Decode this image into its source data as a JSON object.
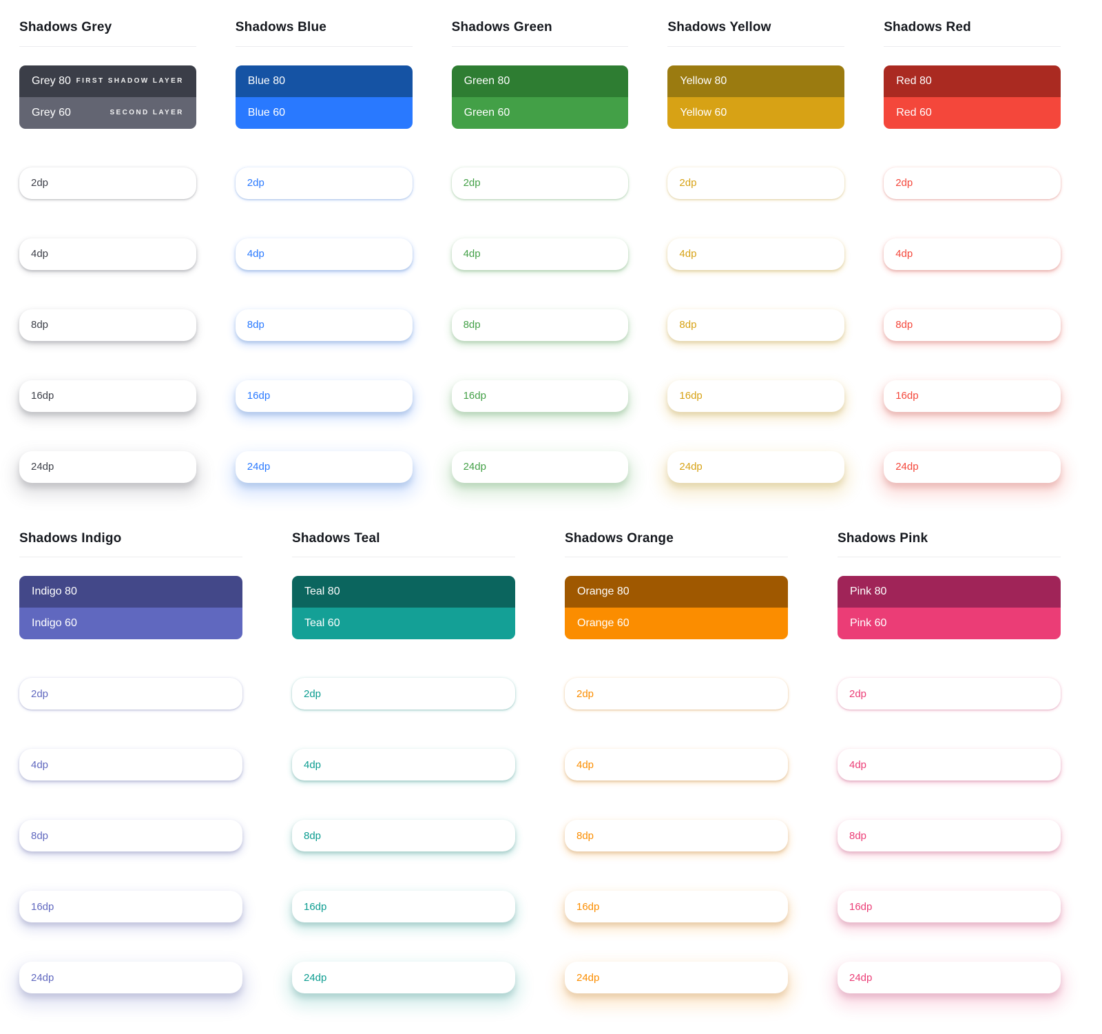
{
  "page": {
    "background": "#ffffff"
  },
  "dp_levels": [
    "2dp",
    "4dp",
    "8dp",
    "16dp",
    "24dp"
  ],
  "sections": [
    {
      "columns": [
        {
          "name": "grey",
          "title": "Shadows Grey",
          "label_color": "#3c3f48",
          "swatches": [
            {
              "label": "Grey 80",
              "note": "FIRST SHADOW LAYER",
              "color": "#3b3e48"
            },
            {
              "label": "Grey 60",
              "note": "SECOND LAYER",
              "color": "#636572"
            }
          ]
        },
        {
          "name": "blue",
          "title": "Shadows Blue",
          "label_color": "#2979ff",
          "swatches": [
            {
              "label": "Blue 80",
              "color": "#1553a4"
            },
            {
              "label": "Blue 60",
              "color": "#2979ff"
            }
          ]
        },
        {
          "name": "green",
          "title": "Shadows Green",
          "label_color": "#43a047",
          "swatches": [
            {
              "label": "Green 80",
              "color": "#2e7d32"
            },
            {
              "label": "Green 60",
              "color": "#43a047"
            }
          ]
        },
        {
          "name": "yellow",
          "title": "Shadows Yellow",
          "label_color": "#d7a215",
          "swatches": [
            {
              "label": "Yellow 80",
              "color": "#9b7b10"
            },
            {
              "label": "Yellow 60",
              "color": "#d7a215"
            }
          ]
        },
        {
          "name": "red",
          "title": "Shadows Red",
          "label_color": "#f4473b",
          "swatches": [
            {
              "label": "Red 80",
              "color": "#aa2a21"
            },
            {
              "label": "Red 60",
              "color": "#f4473b"
            }
          ]
        }
      ]
    },
    {
      "columns": [
        {
          "name": "indigo",
          "title": "Shadows Indigo",
          "label_color": "#6068bf",
          "swatches": [
            {
              "label": "Indigo 80",
              "color": "#434889"
            },
            {
              "label": "Indigo 60",
              "color": "#6068bf"
            }
          ]
        },
        {
          "name": "teal",
          "title": "Shadows Teal",
          "label_color": "#0b9c90",
          "swatches": [
            {
              "label": "Teal 80",
              "color": "#0b655e"
            },
            {
              "label": "Teal 60",
              "color": "#14a096"
            }
          ]
        },
        {
          "name": "orange",
          "title": "Shadows Orange",
          "label_color": "#fb8d00",
          "swatches": [
            {
              "label": "Orange 80",
              "color": "#9f5800"
            },
            {
              "label": "Orange 60",
              "color": "#fb8d00"
            }
          ]
        },
        {
          "name": "pink",
          "title": "Shadows Pink",
          "label_color": "#eb3d76",
          "swatches": [
            {
              "label": "Pink 80",
              "color": "#a02458"
            },
            {
              "label": "Pink 60",
              "color": "#eb3d76"
            }
          ]
        }
      ]
    }
  ]
}
